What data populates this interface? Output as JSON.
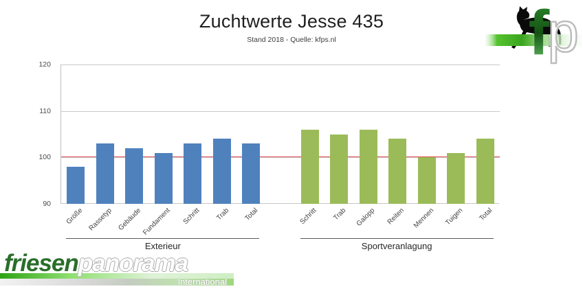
{
  "title": "Zuchtwerte Jesse 435",
  "subtitle": "Stand 2018 - Quelle: kfps.nl",
  "colors": {
    "exterieur_bar": "#4F81BD",
    "sport_bar": "#9BBB59",
    "reference_line": "#E04C4C",
    "gridline": "#C9C9C9",
    "axis": "#BFBFBF"
  },
  "chart_data": {
    "type": "bar",
    "title": "Zuchtwerte Jesse 435",
    "subtitle": "Stand 2018 - Quelle: kfps.nl",
    "xlabel": "",
    "ylabel": "",
    "ylim": [
      90,
      120
    ],
    "yticks": [
      90,
      100,
      110,
      120
    ],
    "grid": true,
    "legend": "none",
    "reference_line": {
      "value": 100,
      "color": "#E04C4C"
    },
    "groups": [
      {
        "label": "Exterieur",
        "color": "#4F81BD",
        "categories": [
          "Größe",
          "Rassetyp",
          "Gebäude",
          "Fundament",
          "Schritt",
          "Trab",
          "Total"
        ],
        "values": [
          98,
          103,
          102,
          101,
          103,
          104,
          103
        ]
      },
      {
        "label": "Sportveranlagung",
        "color": "#9BBB59",
        "categories": [
          "Schritt",
          "Trab",
          "Galopp",
          "Reiten",
          "Mennen",
          "Tuigen",
          "Total"
        ],
        "values": [
          106,
          105,
          106,
          104,
          100,
          101,
          104
        ]
      }
    ]
  },
  "logos": {
    "fp": {
      "f": "f",
      "p": "p"
    },
    "friesenpanorama": {
      "part1": "friesen",
      "part2": "panorama",
      "subtext": "International"
    }
  }
}
